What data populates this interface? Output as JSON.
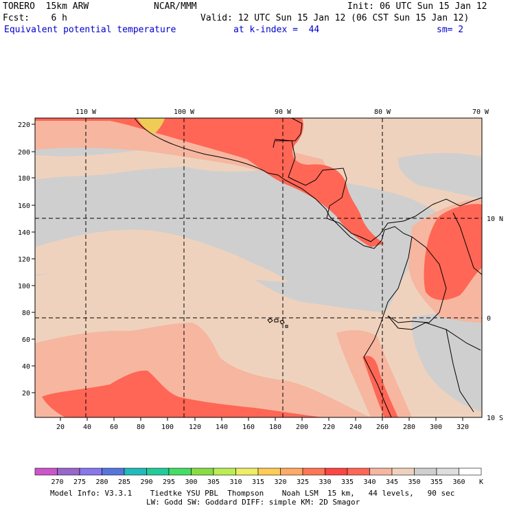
{
  "header": {
    "model_title": "TORERO  15km ARW",
    "org": "NCAR/MMM",
    "init": "Init: 06 UTC Sun 15 Jan 12",
    "fcst": "Fcst:    6 h",
    "valid": "Valid: 12 UTC Sun 15 Jan 12 (06 CST Sun 15 Jan 12)",
    "field": "Equivalent potential temperature",
    "level": "at k-index =  44",
    "smoothing": "sm= 2"
  },
  "map": {
    "lon_labels": [
      "110 W",
      "100 W",
      "90 W",
      "80 W",
      "70 W"
    ],
    "lat_labels": [
      "10 N",
      "0",
      "10 S"
    ],
    "y_grid_labels": [
      "220",
      "200",
      "180",
      "160",
      "140",
      "120",
      "100",
      "80",
      "60",
      "40",
      "20"
    ],
    "x_grid_labels": [
      "20",
      "40",
      "60",
      "80",
      "100",
      "120",
      "140",
      "160",
      "180",
      "200",
      "220",
      "240",
      "260",
      "280",
      "300",
      "320"
    ]
  },
  "colorbar": {
    "units": "K",
    "values": [
      "270",
      "275",
      "280",
      "285",
      "290",
      "295",
      "300",
      "305",
      "310",
      "315",
      "320",
      "325",
      "330",
      "335",
      "340",
      "345",
      "350",
      "355",
      "360"
    ],
    "colors": [
      "#cc55cc",
      "#9966cc",
      "#8877ee",
      "#5577dd",
      "#22bbbb",
      "#22cc99",
      "#44dd66",
      "#88dd44",
      "#bbee55",
      "#eeee66",
      "#ffcc55",
      "#ffaa66",
      "#ff7755",
      "#ff4444",
      "#ff6655",
      "#f6b6a0",
      "#efd2bd",
      "#cfcfcf",
      "#dedede",
      "#ffffff"
    ]
  },
  "footer": {
    "line1": "Model Info: V3.3.1    Tiedtke YSU PBL  Thompson    Noah LSM  15 km,   44 levels,   90 sec",
    "line2": "LW: Godd SW: Goddard DIFF: simple KM: 2D Smagor"
  }
}
